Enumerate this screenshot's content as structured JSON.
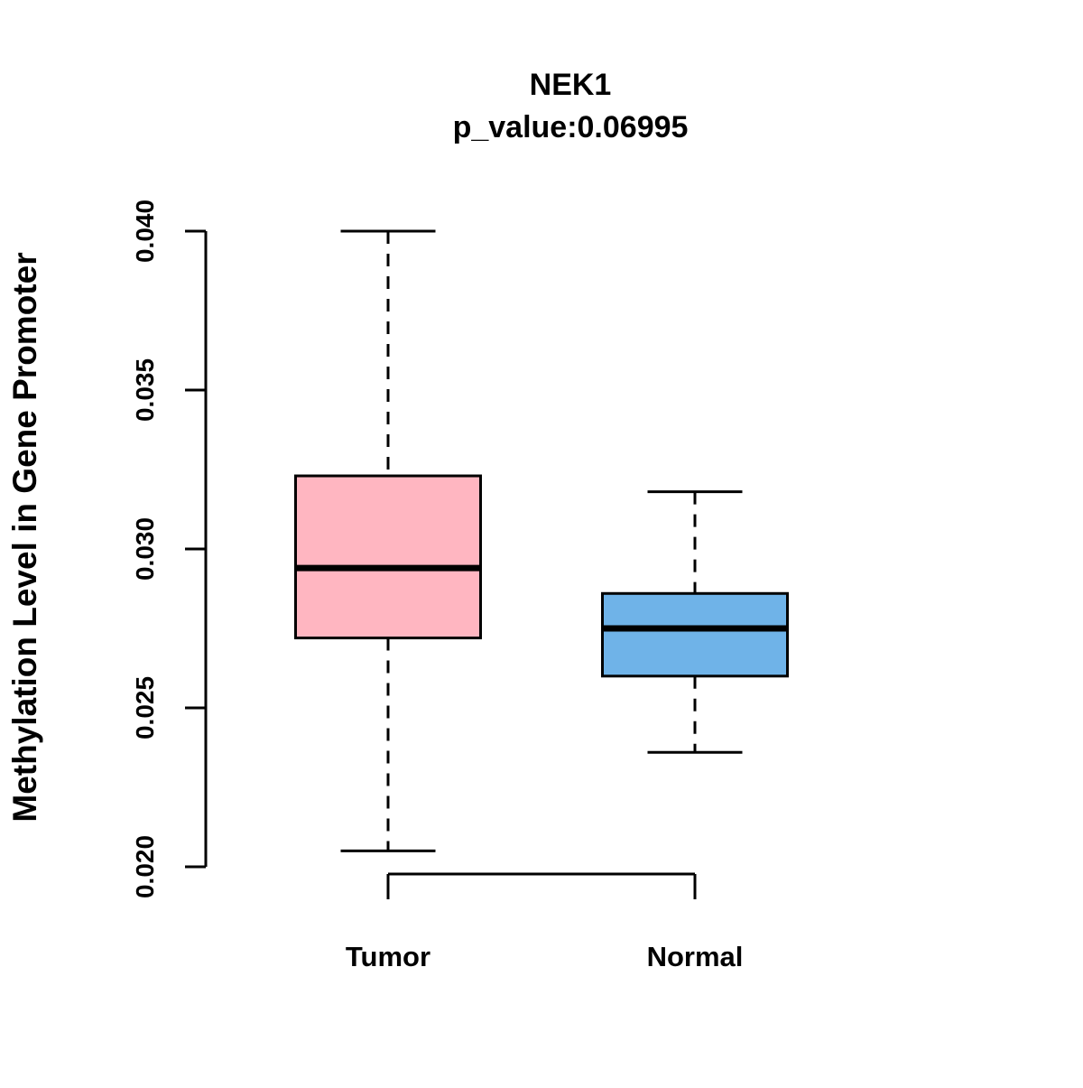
{
  "chart_data": {
    "type": "boxplot",
    "title": "NEK1",
    "subtitle": "p_value:0.06995",
    "ylabel": "Methylation Level in Gene Promoter",
    "xlabel": "",
    "categories": [
      "Tumor",
      "Normal"
    ],
    "ylim": [
      0.02,
      0.04
    ],
    "yticks": [
      {
        "value": 0.02,
        "label": "0.020"
      },
      {
        "value": 0.025,
        "label": "0.025"
      },
      {
        "value": 0.03,
        "label": "0.030"
      },
      {
        "value": 0.035,
        "label": "0.035"
      },
      {
        "value": 0.04,
        "label": "0.040"
      }
    ],
    "series": [
      {
        "name": "Tumor",
        "color": "#FFB6C1",
        "whisker_low": 0.0205,
        "q1": 0.0272,
        "median": 0.0294,
        "q3": 0.0323,
        "whisker_high": 0.04
      },
      {
        "name": "Normal",
        "color": "#6FB3E8",
        "whisker_low": 0.0236,
        "q1": 0.026,
        "median": 0.0275,
        "q3": 0.0286,
        "whisker_high": 0.0318
      }
    ],
    "grid": false,
    "legend": "none",
    "colors": {
      "axis": "#000000",
      "text": "#000000",
      "background": "#ffffff"
    }
  }
}
